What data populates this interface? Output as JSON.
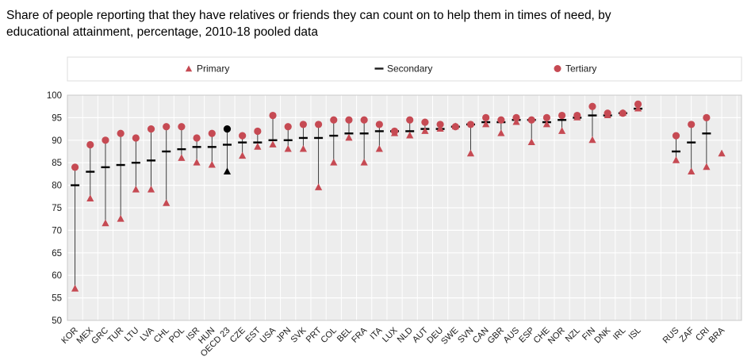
{
  "title": {
    "line1": "Share of people reporting that they have relatives or friends they can count on to help them in times of need, by",
    "line2": "educational attainment, percentage, 2010-18 pooled data"
  },
  "chart_data": {
    "type": "scatter",
    "title": "Share of people reporting that they have relatives or friends they can count on to help them in times of need, by educational attainment, percentage, 2010-18 pooled data",
    "ylim": [
      50,
      100
    ],
    "ytick_step": 5,
    "grid": true,
    "legend_position": "top-center",
    "legend": [
      {
        "label": "Primary",
        "marker": "triangle",
        "color": "#c64a53"
      },
      {
        "label": "Secondary",
        "marker": "dash",
        "color": "#1a1a1a"
      },
      {
        "label": "Tertiary",
        "marker": "circle",
        "color": "#c64a53"
      }
    ],
    "categories": [
      "KOR",
      "MEX",
      "GRC",
      "TUR",
      "LTU",
      "LVA",
      "CHL",
      "POL",
      "ISR",
      "HUN",
      "OECD 23",
      "CZE",
      "EST",
      "USA",
      "JPN",
      "SVK",
      "PRT",
      "COL",
      "BEL",
      "FRA",
      "ITA",
      "LUX",
      "NLD",
      "AUT",
      "DEU",
      "SWE",
      "SVN",
      "CAN",
      "GBR",
      "AUS",
      "ESP",
      "CHE",
      "NOR",
      "NZL",
      "FIN",
      "DNK",
      "IRL",
      "ISL",
      "RUS",
      "ZAF",
      "CRI",
      "BRA"
    ],
    "series": [
      {
        "name": "Primary",
        "marker": "triangle",
        "values": [
          57,
          77,
          71.5,
          72.5,
          79,
          79,
          76,
          86,
          85,
          84.5,
          83,
          86.5,
          88.5,
          89,
          88,
          88,
          79.5,
          85,
          90.5,
          85,
          88,
          91.5,
          91,
          92,
          92.5,
          93,
          87,
          93.5,
          91.5,
          94,
          89.5,
          93.5,
          92,
          95,
          90,
          95.5,
          96,
          97,
          85.5,
          83,
          84,
          87
        ]
      },
      {
        "name": "Secondary",
        "marker": "dash",
        "values": [
          80,
          83,
          84,
          84.5,
          85,
          85.5,
          87.5,
          88,
          88.5,
          88.5,
          89,
          89.5,
          89.5,
          90,
          90,
          90.5,
          90.5,
          91,
          91.5,
          91.5,
          92,
          92,
          92,
          92.5,
          92.5,
          93,
          93.5,
          94,
          94,
          94.5,
          94.5,
          94,
          94.5,
          95,
          95.5,
          95.5,
          96,
          97,
          87.5,
          89.5,
          91.5,
          null
        ]
      },
      {
        "name": "Tertiary",
        "marker": "circle",
        "values": [
          84,
          89,
          90,
          91.5,
          90.5,
          92.5,
          93,
          93,
          90.5,
          91.5,
          92.5,
          91,
          92,
          95.5,
          93,
          93.5,
          93.5,
          94.5,
          94.5,
          94.5,
          93.5,
          92,
          94.5,
          94,
          93.5,
          93,
          93.5,
          95,
          94.5,
          95,
          94.5,
          95,
          95.5,
          95.5,
          97.5,
          96,
          96,
          98,
          91,
          93.5,
          95,
          null
        ]
      }
    ],
    "highlight_category": "OECD 23",
    "gap_after": "ISL",
    "gap_slots": 1.5,
    "right_pad_slots": 0.8,
    "colors": {
      "marker": "#c64a53",
      "highlight": "#000000",
      "connector": "#2b2b2b",
      "plot_bg": "#ededed",
      "grid": "#ffffff",
      "frame": "#c9c9c9",
      "legend_border": "#dcdcdc"
    }
  }
}
